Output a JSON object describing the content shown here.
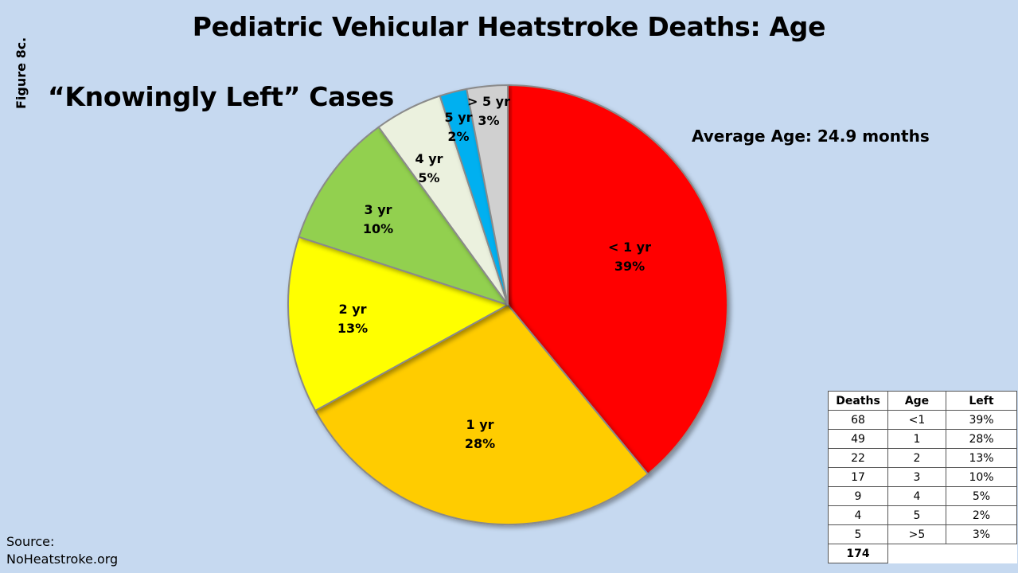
{
  "figure_label": "Figure 8c.",
  "subtitle": "“Knowingly Left” Cases",
  "average_age": "Average Age: 24.9 months",
  "source": {
    "line1": "Source:",
    "line2": "NoHeatstroke.org"
  },
  "chart_data": {
    "type": "pie",
    "title": "Pediatric Vehicular Heatstroke Deaths: Age",
    "categories": [
      "< 1 yr",
      "1 yr",
      "2 yr",
      "3 yr",
      "4 yr",
      "5 yr",
      "> 5 yr"
    ],
    "values": [
      39,
      28,
      13,
      10,
      5,
      2,
      3
    ],
    "labels": [
      "39%",
      "28%",
      "13%",
      "10%",
      "5%",
      "2%",
      "3%"
    ],
    "colors": [
      "#ff0000",
      "#ffcc00",
      "#ffff00",
      "#92d050",
      "#ebf1de",
      "#00b0f0",
      "#d0d0d0"
    ],
    "start_angle": "12 o'clock",
    "direction": "clockwise"
  },
  "table": {
    "headers": [
      "Deaths",
      "Age",
      "Left"
    ],
    "rows": [
      [
        "68",
        "<1",
        "39%"
      ],
      [
        "49",
        "1",
        "28%"
      ],
      [
        "22",
        "2",
        "13%"
      ],
      [
        "17",
        "3",
        "10%"
      ],
      [
        "9",
        "4",
        "5%"
      ],
      [
        "4",
        "5",
        "2%"
      ],
      [
        "5",
        ">5",
        "3%"
      ]
    ],
    "total": "174"
  }
}
